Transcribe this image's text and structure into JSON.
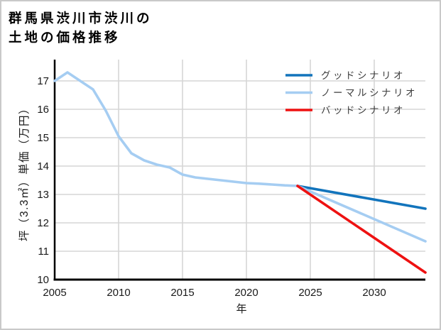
{
  "header": {
    "title_line1": "群馬県渋川市渋川の",
    "title_line2": "土地の価格推移"
  },
  "chart_data": {
    "type": "line",
    "title": "群馬県渋川市渋川の土地の価格推移",
    "xlabel": "年",
    "ylabel": "坪（3.3㎡）単価（万円）",
    "xlim": [
      2005,
      2034
    ],
    "ylim": [
      10,
      17.75
    ],
    "xticks": [
      2005,
      2010,
      2015,
      2020,
      2025,
      2030
    ],
    "yticks": [
      10,
      11,
      12,
      13,
      14,
      15,
      16,
      17
    ],
    "grid": true,
    "legend_position": "upper right",
    "colors": {
      "good": "#1274bc",
      "normal": "#a5cdf2",
      "bad": "#ee1111",
      "grid": "#d6d6d6",
      "axis": "#000000",
      "tick_text": "#1a1a1a",
      "legend_text": "#3d3d3d"
    },
    "series": [
      {
        "key": "history",
        "color_key": "normal",
        "x": [
          2005,
          2006,
          2007,
          2008,
          2009,
          2010,
          2011,
          2012,
          2013,
          2014,
          2015,
          2016,
          2017,
          2018,
          2019,
          2020,
          2021,
          2022,
          2023,
          2024
        ],
        "y": [
          17.0,
          17.3,
          17.0,
          16.7,
          15.95,
          15.05,
          14.45,
          14.2,
          14.05,
          13.95,
          13.7,
          13.6,
          13.55,
          13.5,
          13.45,
          13.4,
          13.38,
          13.35,
          13.32,
          13.3
        ]
      },
      {
        "key": "good",
        "label": "グッドシナリオ",
        "color_key": "good",
        "x": [
          2024,
          2034
        ],
        "y": [
          13.3,
          12.5
        ]
      },
      {
        "key": "normal",
        "label": "ノーマルシナリオ",
        "color_key": "normal",
        "x": [
          2024,
          2034
        ],
        "y": [
          13.3,
          11.35
        ]
      },
      {
        "key": "bad",
        "label": "バッドシナリオ",
        "color_key": "bad",
        "x": [
          2024,
          2034
        ],
        "y": [
          13.3,
          10.25
        ]
      }
    ],
    "legend": [
      {
        "label": "グッドシナリオ",
        "color_key": "good"
      },
      {
        "label": "ノーマルシナリオ",
        "color_key": "normal"
      },
      {
        "label": "バッドシナリオ",
        "color_key": "bad"
      }
    ]
  }
}
